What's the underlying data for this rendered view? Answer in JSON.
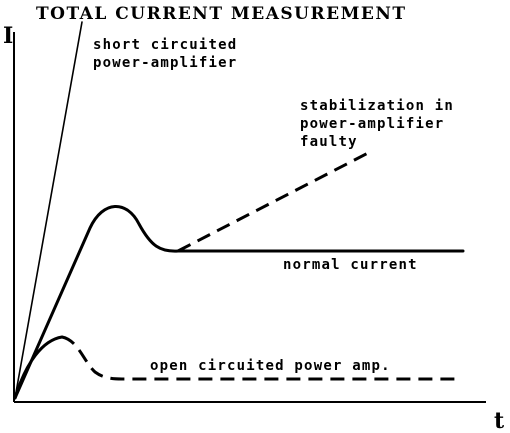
{
  "title": "TOTAL CURRENT MEASUREMENT",
  "axes": {
    "y_label": "I",
    "x_label": "t"
  },
  "labels": {
    "short_circuited_line1": "short circuited",
    "short_circuited_line2": "power-amplifier",
    "stabilization_line1": "stabilization in",
    "stabilization_line2": "power-amplifier",
    "stabilization_line3": "faulty",
    "normal_current": "normal current",
    "open_circuited": "open circuited power amp."
  },
  "colors": {
    "ink": "#000000",
    "background": "#ffffff"
  }
}
